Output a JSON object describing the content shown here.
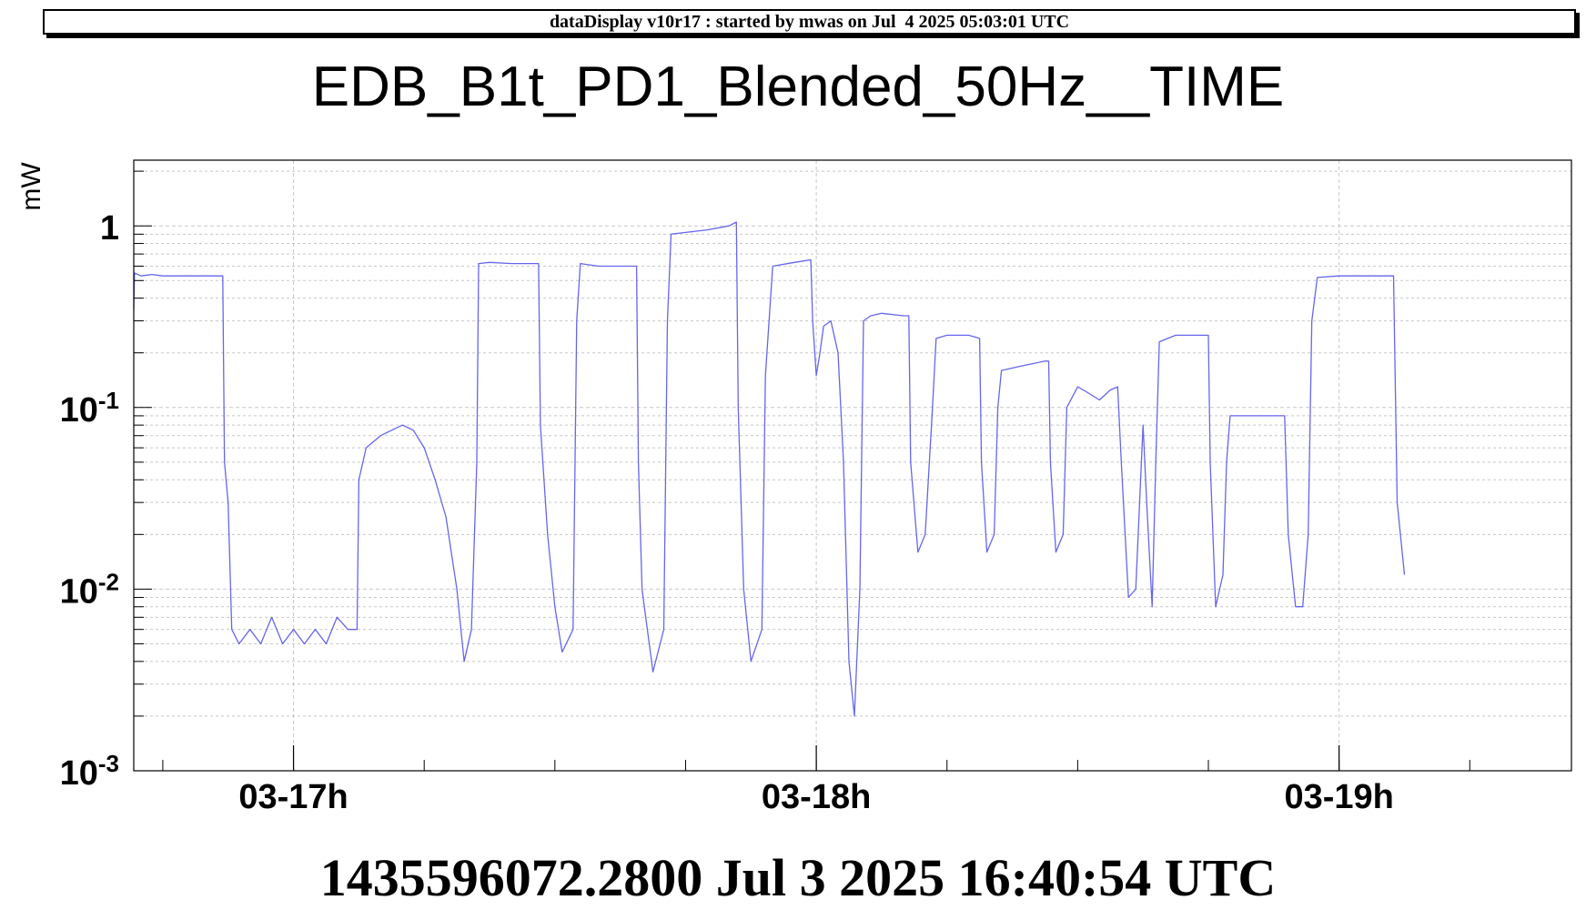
{
  "banner": {
    "text": "dataDisplay v10r17 : started by mwas on Jul  4 2025 05:03:01 UTC"
  },
  "footer": {
    "text": "1435596072.2800 Jul 3 2025 16:40:54 UTC"
  },
  "colors": {
    "series": "#6666ee",
    "grid": "#c8c8c8",
    "axis": "#000000",
    "background": "#ffffff"
  },
  "chart_data": {
    "type": "line",
    "title": "EDB_B1t_PD1_Blended_50Hz__TIME",
    "ylabel": "mW",
    "xlabel": "",
    "yscale": "log",
    "ylim": [
      0.001,
      2.3
    ],
    "xlim": [
      "03-16 16:40",
      "03-19 10:40"
    ],
    "grid": true,
    "legend": "none",
    "x_tick_labels": [
      {
        "label": "03-17h",
        "time": "03-17 00:00"
      },
      {
        "label": "03-18h",
        "time": "03-18 00:00"
      },
      {
        "label": "03-19h",
        "time": "03-19 00:00"
      }
    ],
    "y_tick_labels": [
      {
        "mantissa": "1",
        "exponent": "",
        "value": 1
      },
      {
        "mantissa": "10",
        "exponent": "-1",
        "value": 0.1
      },
      {
        "mantissa": "10",
        "exponent": "-2",
        "value": 0.01
      },
      {
        "mantissa": "10",
        "exponent": "-3",
        "value": 0.001
      }
    ],
    "series": [
      {
        "color": "#6666ee",
        "points": [
          [
            "03-16 16:40",
            0.35
          ],
          [
            "03-16 16:42",
            0.55
          ],
          [
            "03-16 17:00",
            0.53
          ],
          [
            "03-16 17:30",
            0.54
          ],
          [
            "03-16 18:00",
            0.53
          ],
          [
            "03-16 19:00",
            0.53
          ],
          [
            "03-16 20:00",
            0.53
          ],
          [
            "03-16 20:45",
            0.53
          ],
          [
            "03-16 20:50",
            0.05
          ],
          [
            "03-16 21:00",
            0.03
          ],
          [
            "03-16 21:10",
            0.006
          ],
          [
            "03-16 21:30",
            0.005
          ],
          [
            "03-16 22:00",
            0.006
          ],
          [
            "03-16 22:30",
            0.005
          ],
          [
            "03-16 23:00",
            0.007
          ],
          [
            "03-16 23:30",
            0.005
          ],
          [
            "03-17 00:00",
            0.006
          ],
          [
            "03-17 00:30",
            0.005
          ],
          [
            "03-17 01:00",
            0.006
          ],
          [
            "03-17 01:30",
            0.005
          ],
          [
            "03-17 02:00",
            0.007
          ],
          [
            "03-17 02:30",
            0.006
          ],
          [
            "03-17 02:55",
            0.006
          ],
          [
            "03-17 03:00",
            0.04
          ],
          [
            "03-17 03:20",
            0.06
          ],
          [
            "03-17 04:00",
            0.07
          ],
          [
            "03-17 05:00",
            0.08
          ],
          [
            "03-17 05:30",
            0.075
          ],
          [
            "03-17 06:00",
            0.06
          ],
          [
            "03-17 06:30",
            0.04
          ],
          [
            "03-17 07:00",
            0.025
          ],
          [
            "03-17 07:30",
            0.01
          ],
          [
            "03-17 07:50",
            0.004
          ],
          [
            "03-17 08:10",
            0.006
          ],
          [
            "03-17 08:25",
            0.05
          ],
          [
            "03-17 08:30",
            0.62
          ],
          [
            "03-17 09:00",
            0.63
          ],
          [
            "03-17 10:00",
            0.62
          ],
          [
            "03-17 11:00",
            0.62
          ],
          [
            "03-17 11:15",
            0.62
          ],
          [
            "03-17 11:20",
            0.08
          ],
          [
            "03-17 11:40",
            0.02
          ],
          [
            "03-17 12:00",
            0.008
          ],
          [
            "03-17 12:20",
            0.0045
          ],
          [
            "03-17 12:50",
            0.006
          ],
          [
            "03-17 13:00",
            0.3
          ],
          [
            "03-17 13:10",
            0.62
          ],
          [
            "03-17 14:00",
            0.6
          ],
          [
            "03-17 15:00",
            0.6
          ],
          [
            "03-17 15:45",
            0.6
          ],
          [
            "03-17 15:50",
            0.05
          ],
          [
            "03-17 16:00",
            0.01
          ],
          [
            "03-17 16:30",
            0.0035
          ],
          [
            "03-17 17:00",
            0.006
          ],
          [
            "03-17 17:10",
            0.3
          ],
          [
            "03-17 17:20",
            0.9
          ],
          [
            "03-17 18:00",
            0.92
          ],
          [
            "03-17 19:00",
            0.95
          ],
          [
            "03-17 20:00",
            1.0
          ],
          [
            "03-17 20:20",
            1.05
          ],
          [
            "03-17 20:25",
            0.1
          ],
          [
            "03-17 20:40",
            0.01
          ],
          [
            "03-17 21:00",
            0.004
          ],
          [
            "03-17 21:30",
            0.006
          ],
          [
            "03-17 21:40",
            0.15
          ],
          [
            "03-17 22:00",
            0.6
          ],
          [
            "03-17 23:00",
            0.63
          ],
          [
            "03-17 23:45",
            0.65
          ],
          [
            "03-17 23:50",
            0.3
          ],
          [
            "03-18 00:00",
            0.15
          ],
          [
            "03-18 00:10",
            0.2
          ],
          [
            "03-18 00:20",
            0.28
          ],
          [
            "03-18 00:40",
            0.3
          ],
          [
            "03-18 01:00",
            0.2
          ],
          [
            "03-18 01:15",
            0.05
          ],
          [
            "03-18 01:30",
            0.004
          ],
          [
            "03-18 01:45",
            0.002
          ],
          [
            "03-18 02:00",
            0.01
          ],
          [
            "03-18 02:10",
            0.3
          ],
          [
            "03-18 02:30",
            0.32
          ],
          [
            "03-18 03:00",
            0.33
          ],
          [
            "03-18 04:00",
            0.32
          ],
          [
            "03-18 04:15",
            0.32
          ],
          [
            "03-18 04:20",
            0.05
          ],
          [
            "03-18 04:40",
            0.016
          ],
          [
            "03-18 05:00",
            0.02
          ],
          [
            "03-18 05:20",
            0.1
          ],
          [
            "03-18 05:30",
            0.24
          ],
          [
            "03-18 06:00",
            0.25
          ],
          [
            "03-18 07:00",
            0.25
          ],
          [
            "03-18 07:30",
            0.24
          ],
          [
            "03-18 07:35",
            0.05
          ],
          [
            "03-18 07:50",
            0.016
          ],
          [
            "03-18 08:10",
            0.02
          ],
          [
            "03-18 08:20",
            0.1
          ],
          [
            "03-18 08:30",
            0.16
          ],
          [
            "03-18 09:30",
            0.17
          ],
          [
            "03-18 10:30",
            0.18
          ],
          [
            "03-18 10:40",
            0.18
          ],
          [
            "03-18 10:45",
            0.05
          ],
          [
            "03-18 11:00",
            0.016
          ],
          [
            "03-18 11:20",
            0.02
          ],
          [
            "03-18 11:30",
            0.1
          ],
          [
            "03-18 12:00",
            0.13
          ],
          [
            "03-18 12:30",
            0.12
          ],
          [
            "03-18 13:00",
            0.11
          ],
          [
            "03-18 13:30",
            0.125
          ],
          [
            "03-18 13:50",
            0.13
          ],
          [
            "03-18 14:00",
            0.05
          ],
          [
            "03-18 14:20",
            0.009
          ],
          [
            "03-18 14:40",
            0.01
          ],
          [
            "03-18 15:00",
            0.08
          ],
          [
            "03-18 15:10",
            0.03
          ],
          [
            "03-18 15:25",
            0.008
          ],
          [
            "03-18 15:35",
            0.05
          ],
          [
            "03-18 15:45",
            0.23
          ],
          [
            "03-18 16:30",
            0.25
          ],
          [
            "03-18 17:30",
            0.25
          ],
          [
            "03-18 18:00",
            0.25
          ],
          [
            "03-18 18:05",
            0.05
          ],
          [
            "03-18 18:20",
            0.008
          ],
          [
            "03-18 18:40",
            0.012
          ],
          [
            "03-18 18:50",
            0.05
          ],
          [
            "03-18 19:00",
            0.09
          ],
          [
            "03-18 20:00",
            0.09
          ],
          [
            "03-18 21:00",
            0.09
          ],
          [
            "03-18 21:30",
            0.09
          ],
          [
            "03-18 21:40",
            0.02
          ],
          [
            "03-18 22:00",
            0.008
          ],
          [
            "03-18 22:20",
            0.008
          ],
          [
            "03-18 22:35",
            0.02
          ],
          [
            "03-18 22:45",
            0.3
          ],
          [
            "03-18 23:00",
            0.52
          ],
          [
            "03-19 00:00",
            0.53
          ],
          [
            "03-19 01:00",
            0.53
          ],
          [
            "03-19 02:00",
            0.53
          ],
          [
            "03-19 02:30",
            0.53
          ],
          [
            "03-19 02:40",
            0.03
          ],
          [
            "03-19 03:00",
            0.012
          ]
        ]
      }
    ]
  }
}
